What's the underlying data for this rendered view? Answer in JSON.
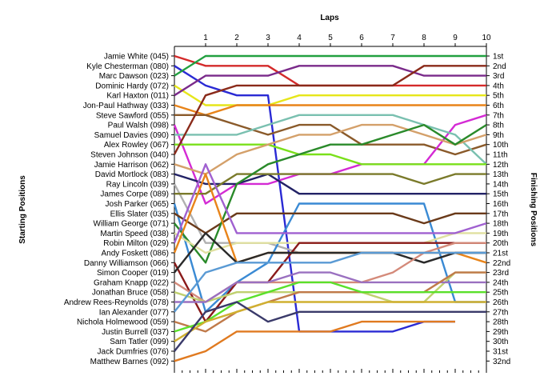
{
  "chart_data": {
    "type": "line",
    "title": "",
    "xlabel": "Laps",
    "ylabel_left": "Starting Positions",
    "ylabel_right": "Finishing Positions",
    "x": [
      0,
      1,
      2,
      3,
      4,
      5,
      6,
      7,
      8,
      9,
      10
    ],
    "x_tick_labels": [
      "1",
      "2",
      "3",
      "4",
      "5",
      "6",
      "7",
      "8",
      "9",
      "10"
    ],
    "position_labels": [
      "1st",
      "2nd",
      "3rd",
      "4th",
      "5th",
      "6th",
      "7th",
      "8th",
      "9th",
      "10th",
      "11th",
      "12th",
      "13th",
      "14th",
      "15th",
      "16th",
      "17th",
      "18th",
      "19th",
      "20th",
      "21st",
      "22nd",
      "23rd",
      "24th",
      "25th",
      "26th",
      "27th",
      "28th",
      "29th",
      "30th",
      "31st",
      "32nd"
    ],
    "ylim": [
      1,
      32
    ],
    "y_inverted": true,
    "grid": false,
    "series": [
      {
        "name": "Jamie White (045)",
        "color": "#d42a2a",
        "positions": [
          1,
          2,
          2,
          2,
          4,
          4,
          4,
          4,
          4,
          4,
          4
        ]
      },
      {
        "name": "Kyle Chesterman (080)",
        "color": "#2a2ad4",
        "positions": [
          2,
          4,
          5,
          5,
          29,
          29,
          29,
          29,
          28,
          28,
          null
        ]
      },
      {
        "name": "Marc Dawson (023)",
        "color": "#22a040",
        "positions": [
          3,
          1,
          1,
          1,
          1,
          1,
          1,
          1,
          1,
          1,
          1
        ]
      },
      {
        "name": "Dominic Hardy (072)",
        "color": "#e6e61a",
        "positions": [
          4,
          6,
          6,
          6,
          5,
          5,
          5,
          5,
          5,
          5,
          5
        ]
      },
      {
        "name": "Karl Haxton (011)",
        "color": "#7a2a8a",
        "positions": [
          5,
          3,
          3,
          3,
          2,
          2,
          2,
          2,
          3,
          3,
          3
        ]
      },
      {
        "name": "Jon-Paul Hathway (033)",
        "color": "#e8841a",
        "positions": [
          6,
          7,
          6,
          6,
          6,
          6,
          6,
          6,
          6,
          6,
          6
        ]
      },
      {
        "name": "Steve Sawford (055)",
        "color": "#8a5a2a",
        "positions": [
          7,
          7,
          8,
          9,
          8,
          8,
          10,
          10,
          10,
          11,
          10
        ]
      },
      {
        "name": "Paul Walsh (098)",
        "color": "#d42ad4",
        "positions": [
          8,
          16,
          14,
          14,
          13,
          13,
          12,
          12,
          12,
          8,
          7
        ]
      },
      {
        "name": "Samuel Davies (090)",
        "color": "#7ac0b0",
        "positions": [
          9,
          9,
          9,
          8,
          7,
          7,
          7,
          7,
          8,
          9,
          12
        ]
      },
      {
        "name": "Alex Rowley (067)",
        "color": "#7ae01a",
        "positions": [
          10,
          10,
          10,
          10,
          11,
          11,
          12,
          12,
          12,
          12,
          12
        ]
      },
      {
        "name": "Steven Johnson (040)",
        "color": "#8a2a1a",
        "positions": [
          11,
          5,
          4,
          4,
          4,
          4,
          4,
          4,
          2,
          2,
          2
        ]
      },
      {
        "name": "Jamie Harrison (062)",
        "color": "#d4a06a",
        "positions": [
          12,
          13,
          11,
          10,
          9,
          9,
          8,
          8,
          9,
          10,
          9
        ]
      },
      {
        "name": "David Mortlock (083)",
        "color": "#222266",
        "positions": [
          13,
          14,
          14,
          13,
          15,
          15,
          15,
          15,
          15,
          15,
          15
        ]
      },
      {
        "name": "Ray Lincoln (039)",
        "color": "#b0b0b0",
        "positions": [
          14,
          20,
          20,
          20,
          21,
          21,
          21,
          21,
          22,
          21,
          21
        ]
      },
      {
        "name": "James Corpe (089)",
        "color": "#7a7a2a",
        "positions": [
          15,
          15,
          13,
          13,
          13,
          13,
          13,
          13,
          14,
          13,
          13
        ]
      },
      {
        "name": "Josh Parker (065)",
        "color": "#3a8ad4",
        "positions": [
          16,
          27,
          24,
          22,
          16,
          16,
          16,
          16,
          16,
          26,
          26
        ]
      },
      {
        "name": "Ellis Slater (035)",
        "color": "#6a3a1a",
        "positions": [
          17,
          19,
          17,
          17,
          17,
          17,
          17,
          17,
          18,
          17,
          17
        ]
      },
      {
        "name": "William George (071)",
        "color": "#2a8a2a",
        "positions": [
          18,
          22,
          14,
          12,
          11,
          10,
          10,
          9,
          8,
          10,
          8
        ]
      },
      {
        "name": "Martin Speed (038)",
        "color": "#e0e0a0",
        "positions": [
          19,
          21,
          20,
          20,
          20,
          20,
          20,
          20,
          20,
          19,
          19
        ]
      },
      {
        "name": "Robin Milton (029)",
        "color": "#a060d0",
        "positions": [
          20,
          12,
          19,
          19,
          19,
          19,
          19,
          19,
          19,
          19,
          18
        ]
      },
      {
        "name": "Andy Foskett (086)",
        "color": "#e8841a",
        "positions": [
          21,
          13,
          22,
          21,
          21,
          21,
          21,
          21,
          21,
          21,
          22
        ]
      },
      {
        "name": "Danny Williamson (066)",
        "color": "#8a1a1a",
        "positions": [
          22,
          28,
          24,
          24,
          20,
          20,
          20,
          20,
          20,
          20,
          20
        ]
      },
      {
        "name": "Simon Cooper (019)",
        "color": "#2a2a2a",
        "positions": [
          23,
          19,
          22,
          21,
          21,
          21,
          21,
          21,
          22,
          21,
          21
        ]
      },
      {
        "name": "Graham Knapp (022)",
        "color": "#d48a7a",
        "positions": [
          24,
          26,
          24,
          24,
          24,
          24,
          24,
          23,
          21,
          20,
          20
        ]
      },
      {
        "name": "Jonathan Bruce (058)",
        "color": "#c0d070",
        "positions": [
          25,
          26,
          25,
          25,
          25,
          25,
          25,
          26,
          26,
          23,
          23
        ]
      },
      {
        "name": "Andrew Rees-Reynolds (078)",
        "color": "#9a70c0",
        "positions": [
          26,
          26,
          24,
          24,
          23,
          23,
          24,
          24,
          24,
          24,
          24
        ]
      },
      {
        "name": "Ian Alexander (077)",
        "color": "#5a9ad4",
        "positions": [
          27,
          23,
          22,
          22,
          22,
          22,
          21,
          21,
          21,
          21,
          21
        ]
      },
      {
        "name": "Nichola Holmewood (059)",
        "color": "#c07a4a",
        "positions": [
          28,
          29,
          27,
          26,
          25,
          25,
          25,
          25,
          25,
          23,
          23
        ]
      },
      {
        "name": "Justin Burrell (037)",
        "color": "#5ae02a",
        "positions": [
          29,
          28,
          26,
          25,
          24,
          24,
          25,
          25,
          25,
          25,
          25
        ]
      },
      {
        "name": "Sam Tatler (099)",
        "color": "#d0b030",
        "positions": [
          30,
          28,
          27,
          26,
          26,
          26,
          26,
          26,
          26,
          26,
          26
        ]
      },
      {
        "name": "Jack Dumfries (076)",
        "color": "#3a3a6a",
        "positions": [
          31,
          27,
          26,
          28,
          27,
          27,
          27,
          27,
          27,
          27,
          27
        ]
      },
      {
        "name": "Matthew Barnes (092)",
        "color": "#e07a20",
        "positions": [
          32,
          31,
          29,
          29,
          29,
          29,
          28,
          28,
          28,
          28,
          null
        ]
      }
    ]
  }
}
